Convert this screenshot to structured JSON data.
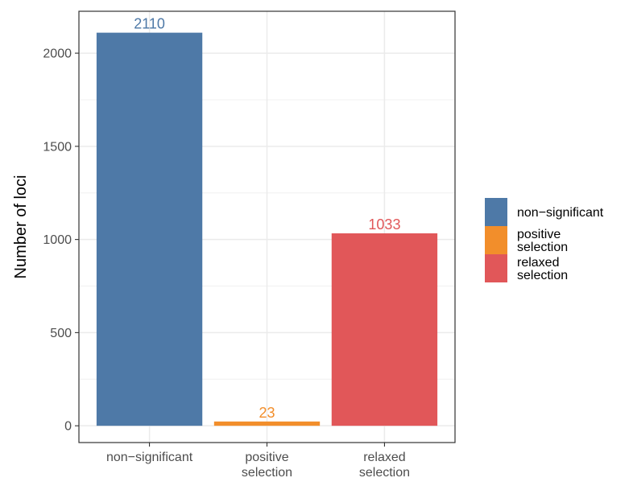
{
  "chart_data": {
    "type": "bar",
    "categories": [
      [
        "non−significant"
      ],
      [
        "positive",
        "selection"
      ],
      [
        "relaxed",
        "selection"
      ]
    ],
    "values": [
      2110,
      23,
      1033
    ],
    "data_labels": [
      "2110",
      "23",
      "1033"
    ],
    "colors": [
      "#4e79a7",
      "#f28e2b",
      "#e15759"
    ],
    "xlabel": "",
    "ylabel": "Number of loci",
    "ylim": [
      -90,
      2225
    ],
    "yticks": [
      0,
      500,
      1000,
      1500,
      2000
    ],
    "ytick_labels": [
      "0",
      "500",
      "1000",
      "1500",
      "2000"
    ],
    "grid": true,
    "legend": {
      "placement": "right",
      "entries": [
        {
          "lines": [
            "non−significant"
          ],
          "color": "#4e79a7"
        },
        {
          "lines": [
            "positive",
            "selection"
          ],
          "color": "#f28e2b"
        },
        {
          "lines": [
            "relaxed",
            "selection"
          ],
          "color": "#e15759"
        }
      ]
    }
  }
}
